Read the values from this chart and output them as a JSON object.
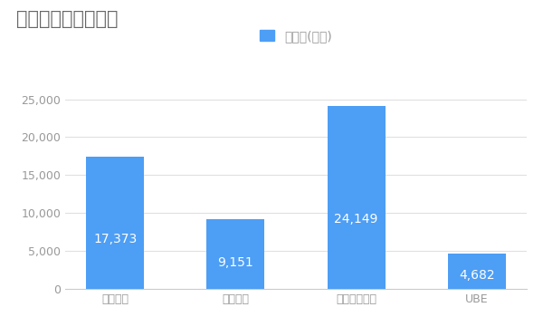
{
  "title": "競合含む年間売上高",
  "legend_label": "売上高(億円)",
  "categories": [
    "三井化学",
    "日東電工",
    "信越化学工業",
    "UBE"
  ],
  "values": [
    17373,
    9151,
    24149,
    4682
  ],
  "bar_color": "#4d9ef5",
  "bar_label_color": "#ffffff",
  "title_color": "#666666",
  "axis_label_color": "#999999",
  "background_color": "#ffffff",
  "grid_color": "#e0e0e0",
  "ylim": [
    0,
    27000
  ],
  "yticks": [
    0,
    5000,
    10000,
    15000,
    20000,
    25000
  ],
  "title_fontsize": 15,
  "legend_fontsize": 10,
  "bar_label_fontsize": 10,
  "tick_fontsize": 9
}
